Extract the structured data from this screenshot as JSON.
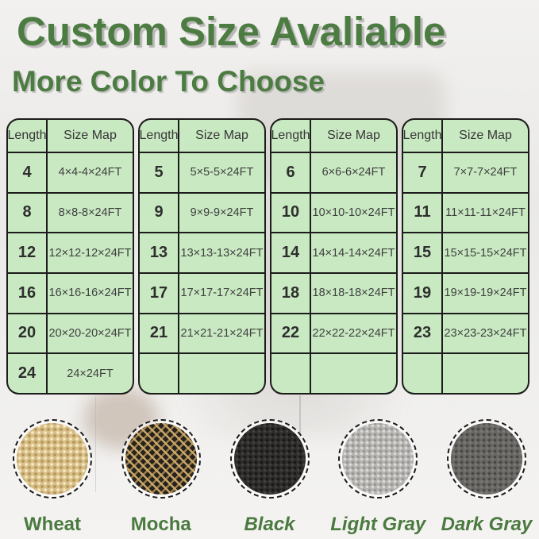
{
  "header": {
    "title": "Custom Size Avaliable",
    "subtitle": "More Color To Choose"
  },
  "tables": [
    {
      "headers": [
        "Length",
        "Size Map"
      ],
      "rows": [
        [
          "4",
          "4×4-4×24FT"
        ],
        [
          "8",
          "8×8-8×24FT"
        ],
        [
          "12",
          "12×12-12×24FT"
        ],
        [
          "16",
          "16×16-16×24FT"
        ],
        [
          "20",
          "20×20-20×24FT"
        ],
        [
          "24",
          "24×24FT"
        ]
      ]
    },
    {
      "headers": [
        "Length",
        "Size Map"
      ],
      "rows": [
        [
          "5",
          "5×5-5×24FT"
        ],
        [
          "9",
          "9×9-9×24FT"
        ],
        [
          "13",
          "13×13-13×24FT"
        ],
        [
          "17",
          "17×17-17×24FT"
        ],
        [
          "21",
          "21×21-21×24FT"
        ],
        [
          "",
          ""
        ]
      ]
    },
    {
      "headers": [
        "Length",
        "Size Map"
      ],
      "rows": [
        [
          "6",
          "6×6-6×24FT"
        ],
        [
          "10",
          "10×10-10×24FT"
        ],
        [
          "14",
          "14×14-14×24FT"
        ],
        [
          "18",
          "18×18-18×24FT"
        ],
        [
          "22",
          "22×22-22×24FT"
        ],
        [
          "",
          ""
        ]
      ]
    },
    {
      "headers": [
        "Length",
        "Size Map"
      ],
      "rows": [
        [
          "7",
          "7×7-7×24FT"
        ],
        [
          "11",
          "11×11-11×24FT"
        ],
        [
          "15",
          "15×15-15×24FT"
        ],
        [
          "19",
          "19×19-19×24FT"
        ],
        [
          "23",
          "23×23-23×24FT"
        ],
        [
          "",
          ""
        ]
      ]
    }
  ],
  "colors_section": {
    "swatches": [
      {
        "name": "Wheat",
        "base_color": "#d9bf85"
      },
      {
        "name": "Mocha",
        "base_color": "#26231e"
      },
      {
        "name": "Black",
        "base_color": "#2e2d2b"
      },
      {
        "name": "Light Gray",
        "base_color": "#b6b5b2"
      },
      {
        "name": "Dark Gray",
        "base_color": "#696763"
      }
    ]
  },
  "palette": {
    "title_green": "#4d7c43",
    "label_green": "#4a7a3f",
    "table_bg": "#c9e9c2",
    "table_border": "#1c1c1c",
    "cell_text": "#3c3c3c"
  }
}
